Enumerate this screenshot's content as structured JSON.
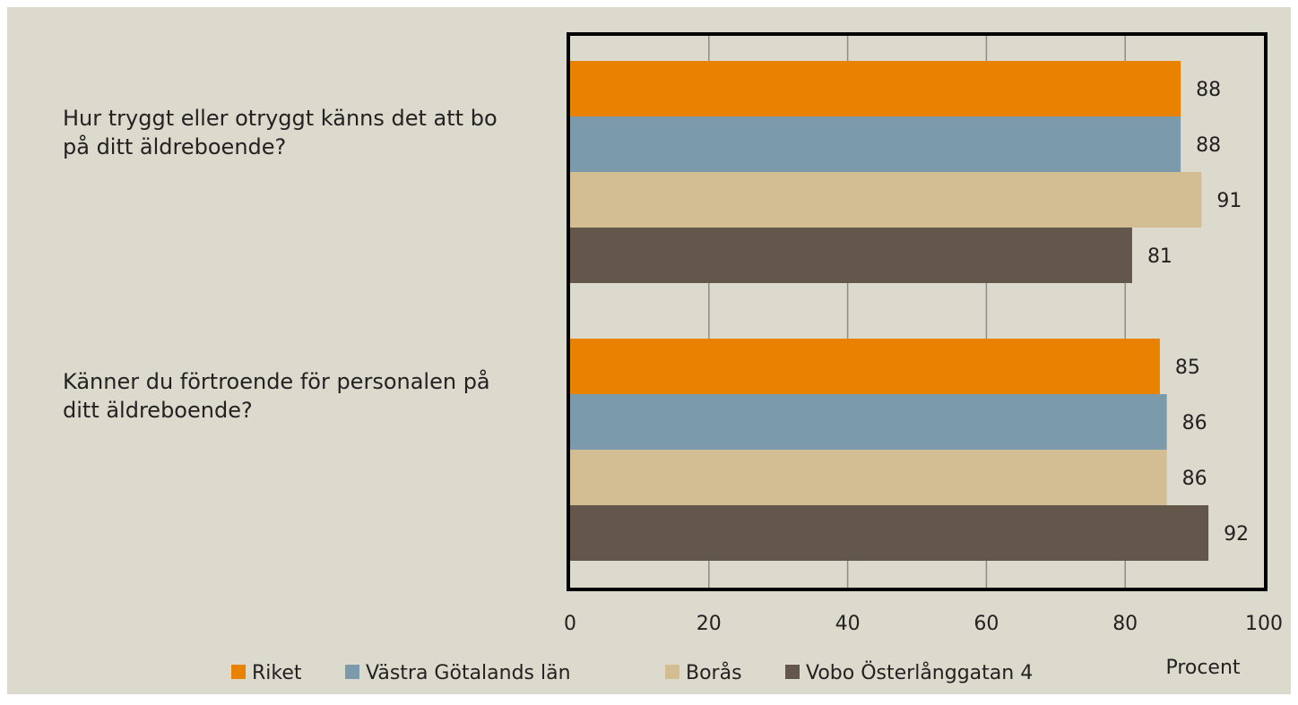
{
  "chart_data": {
    "type": "bar",
    "orientation": "horizontal",
    "categories": [
      "Hur tryggt eller otryggt känns det att bo på ditt äldreboende?",
      "Känner du förtroende för personalen på ditt äldreboende?"
    ],
    "series": [
      {
        "name": "Riket",
        "color": "#e88200",
        "values": [
          88,
          85
        ]
      },
      {
        "name": "Västra Götalands län",
        "color": "#7b9aab",
        "values": [
          88,
          86
        ]
      },
      {
        "name": "Borås",
        "color": "#d3bd93",
        "values": [
          91,
          86
        ]
      },
      {
        "name": "Vobo Österlånggatan 4",
        "color": "#63564a",
        "values": [
          81,
          92
        ]
      }
    ],
    "xlabel": "Procent",
    "xlim": [
      0,
      100
    ],
    "xticks": [
      "0",
      "20",
      "40",
      "60",
      "80",
      "100"
    ],
    "grid": "vertical",
    "legend_position": "bottom",
    "data_labels": true
  }
}
